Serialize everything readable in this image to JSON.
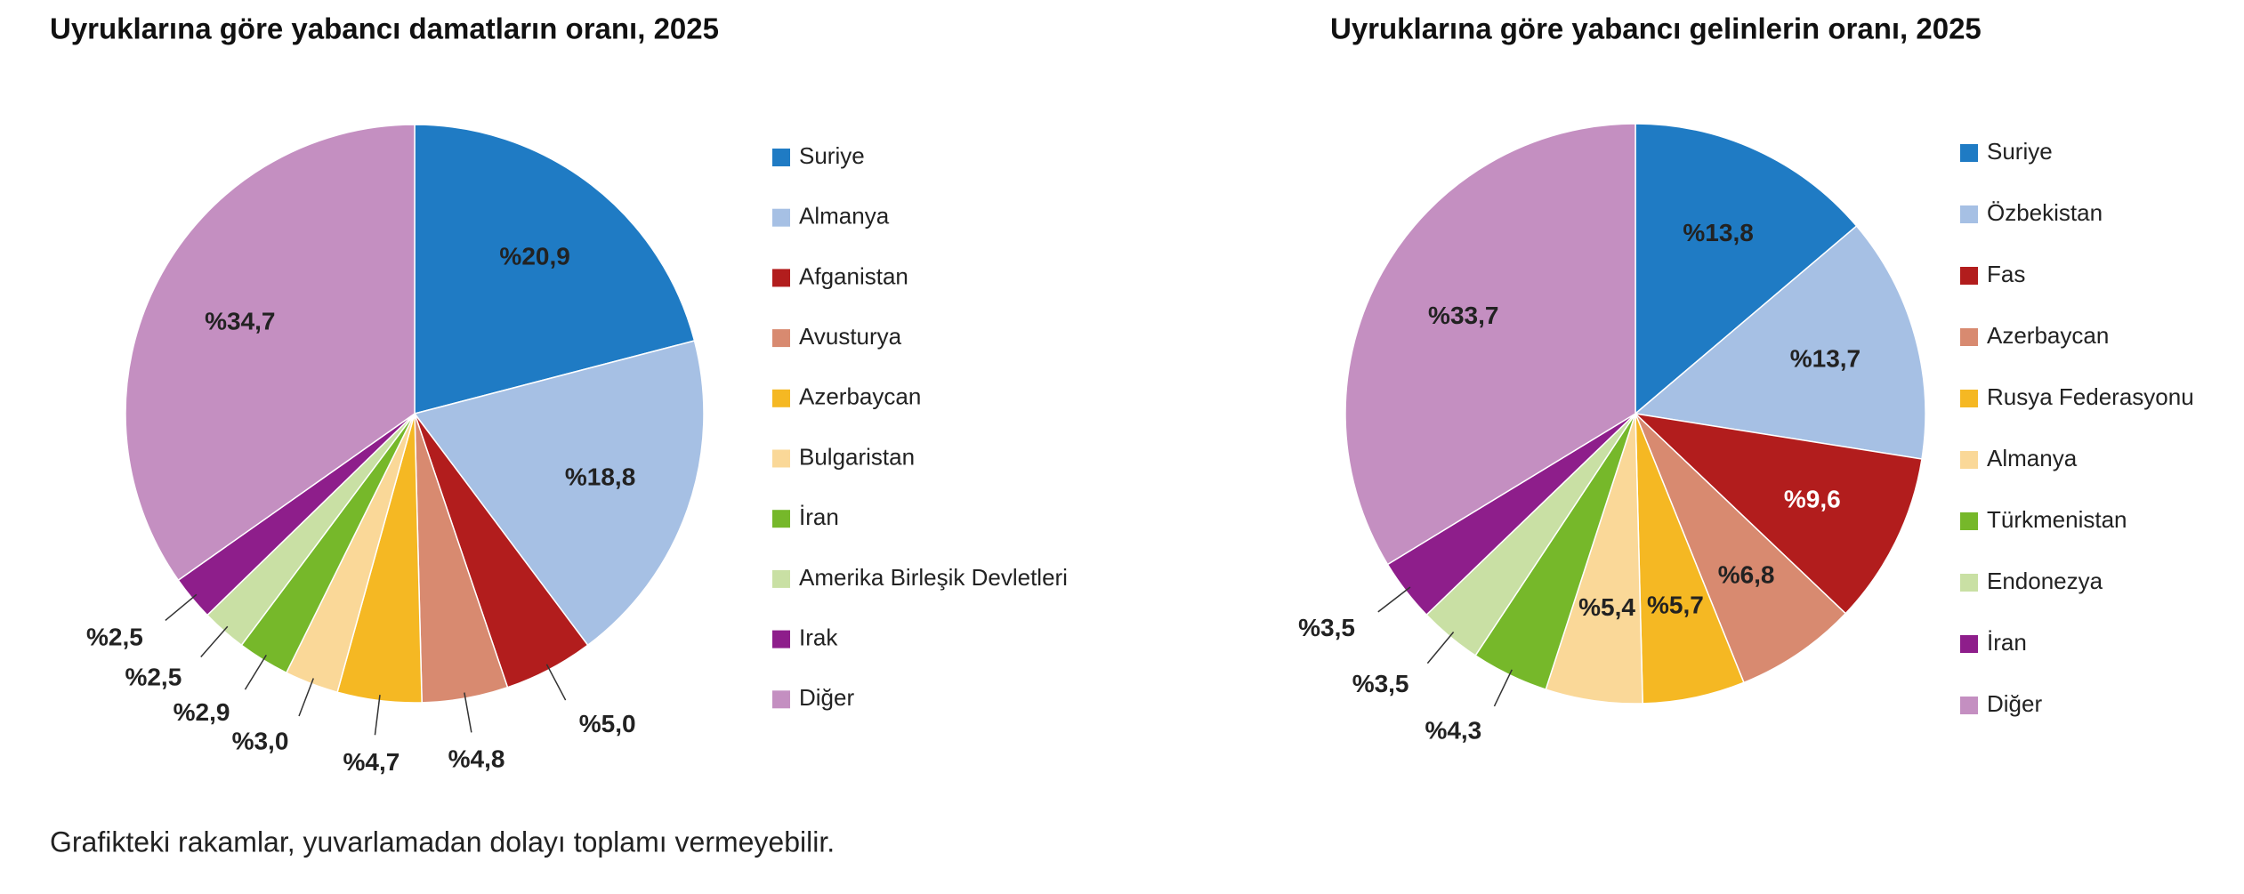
{
  "chart_data": [
    {
      "type": "pie",
      "title": "Uyruklarına göre yabancı damatların oranı, 2025",
      "categories": [
        "Suriye",
        "Almanya",
        "Afganistan",
        "Avusturya",
        "Azerbaycan",
        "Bulgaristan",
        "İran",
        "Amerika Birleşik Devletleri",
        "Irak",
        "Diğer"
      ],
      "values": [
        20.9,
        18.8,
        5.0,
        4.8,
        4.7,
        3.0,
        2.9,
        2.5,
        2.5,
        34.7
      ],
      "value_labels": [
        "%20,9",
        "%18,8",
        "%5,0",
        "%4,8",
        "%4,7",
        "%3,0",
        "%2,9",
        "%2,5",
        "%2,5",
        "%34,7"
      ],
      "colors": [
        "#1f7bc4",
        "#a6c0e4",
        "#b21d1d",
        "#d88a70",
        "#f5b823",
        "#fad898",
        "#76b82a",
        "#c9e0a4",
        "#8e1e8b",
        "#c48fc1"
      ],
      "legend": "right"
    },
    {
      "type": "pie",
      "title": "Uyruklarına göre yabancı gelinlerin oranı, 2025",
      "categories": [
        "Suriye",
        "Özbekistan",
        "Fas",
        "Azerbaycan",
        "Rusya Federasyonu",
        "Almanya",
        "Türkmenistan",
        "Endonezya",
        "İran",
        "Diğer"
      ],
      "values": [
        13.8,
        13.7,
        9.6,
        6.8,
        5.7,
        5.4,
        4.3,
        3.5,
        3.5,
        33.7
      ],
      "value_labels": [
        "%13,8",
        "%13,7",
        "%9,6",
        "%6,8",
        "%5,7",
        "%5,4",
        "%4,3",
        "%3,5",
        "%3,5",
        "%33,7"
      ],
      "colors": [
        "#1f7bc4",
        "#a6c0e4",
        "#b21d1d",
        "#d88a70",
        "#f5b823",
        "#fad898",
        "#76b82a",
        "#c9e0a4",
        "#8e1e8b",
        "#c48fc1"
      ],
      "legend": "right"
    }
  ],
  "footnote": "Grafikteki rakamlar, yuvarlamadan dolayı toplamı vermeyebilir."
}
